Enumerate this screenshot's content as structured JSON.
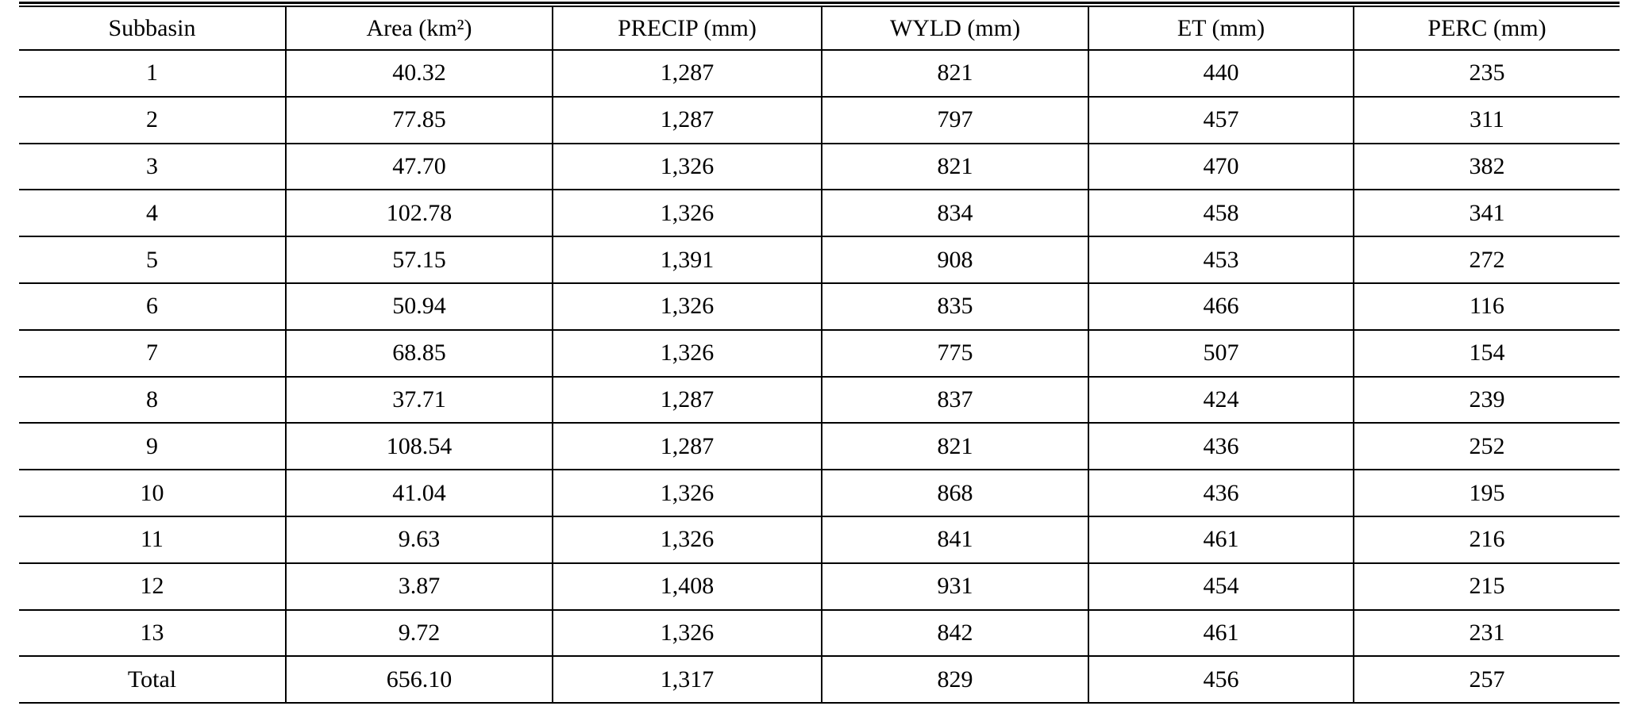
{
  "table": {
    "header": [
      "Subbasin",
      "Area (km²)",
      "PRECIP (mm)",
      "WYLD (mm)",
      "ET (mm)",
      "PERC (mm)"
    ],
    "rows": [
      [
        "1",
        "40.32",
        "1,287",
        "821",
        "440",
        "235"
      ],
      [
        "2",
        "77.85",
        "1,287",
        "797",
        "457",
        "311"
      ],
      [
        "3",
        "47.70",
        "1,326",
        "821",
        "470",
        "382"
      ],
      [
        "4",
        "102.78",
        "1,326",
        "834",
        "458",
        "341"
      ],
      [
        "5",
        "57.15",
        "1,391",
        "908",
        "453",
        "272"
      ],
      [
        "6",
        "50.94",
        "1,326",
        "835",
        "466",
        "116"
      ],
      [
        "7",
        "68.85",
        "1,326",
        "775",
        "507",
        "154"
      ],
      [
        "8",
        "37.71",
        "1,287",
        "837",
        "424",
        "239"
      ],
      [
        "9",
        "108.54",
        "1,287",
        "821",
        "436",
        "252"
      ],
      [
        "10",
        "41.04",
        "1,326",
        "868",
        "436",
        "195"
      ],
      [
        "11",
        "9.63",
        "1,326",
        "841",
        "461",
        "216"
      ],
      [
        "12",
        "3.87",
        "1,408",
        "931",
        "454",
        "215"
      ],
      [
        "13",
        "9.72",
        "1,326",
        "842",
        "461",
        "231"
      ],
      [
        "Total",
        "656.10",
        "1,317",
        "829",
        "456",
        "257"
      ]
    ]
  }
}
